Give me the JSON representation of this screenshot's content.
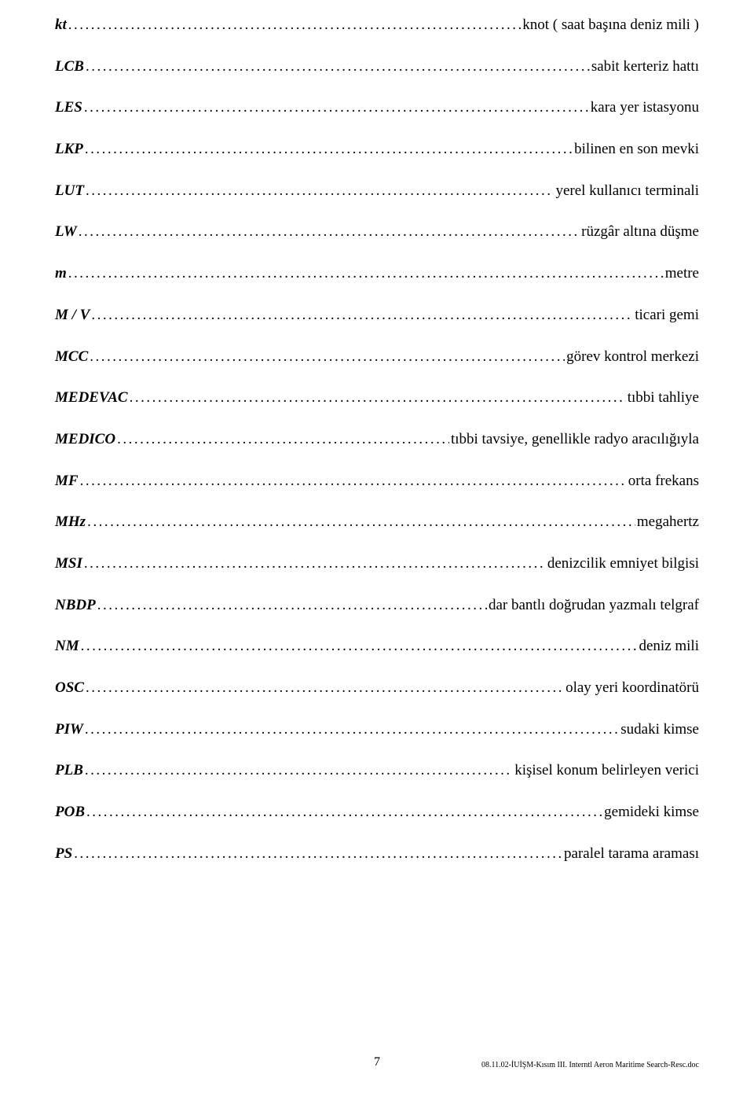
{
  "entries": [
    {
      "term": "kt",
      "def": "knot ( saat başına deniz mili )"
    },
    {
      "term": "LCB",
      "def": "sabit kerteriz hattı"
    },
    {
      "term": "LES",
      "def": "kara yer istasyonu"
    },
    {
      "term": "LKP",
      "def": "bilinen en son mevki"
    },
    {
      "term": "LUT",
      "def": "yerel kullanıcı terminali"
    },
    {
      "term": "LW",
      "def": "rüzgâr altına düşme"
    },
    {
      "term": "m",
      "def": "metre"
    },
    {
      "term": "M / V",
      "def": "ticari gemi"
    },
    {
      "term": "MCC",
      "def": "görev kontrol merkezi"
    },
    {
      "term": "MEDEVAC",
      "def": "tıbbi tahliye"
    },
    {
      "term": "MEDICO",
      "def": "tıbbi tavsiye, genellikle radyo aracılığıyla"
    },
    {
      "term": "MF",
      "def": "orta frekans"
    },
    {
      "term": "MHz",
      "def": "megahertz"
    },
    {
      "term": "MSI",
      "def": "denizcilik emniyet bilgisi"
    },
    {
      "term": "NBDP",
      "def": "dar bantlı doğrudan yazmalı telgraf"
    },
    {
      "term": "NM",
      "def": "deniz mili"
    },
    {
      "term": "OSC",
      "def": "olay yeri koordinatörü"
    },
    {
      "term": "PIW",
      "def": "sudaki kimse"
    },
    {
      "term": "PLB",
      "def": "kişisel konum belirleyen verici"
    },
    {
      "term": "POB",
      "def": "gemideki kimse"
    },
    {
      "term": "PS",
      "def": "paralel tarama araması"
    }
  ],
  "page_number": "7",
  "doc_reference": "08.11.02-İUİŞM-Kısım III. Interntl Aeron Maritime Search-Resc.doc",
  "dot_fill": "........................................................................................................................................................................................................"
}
